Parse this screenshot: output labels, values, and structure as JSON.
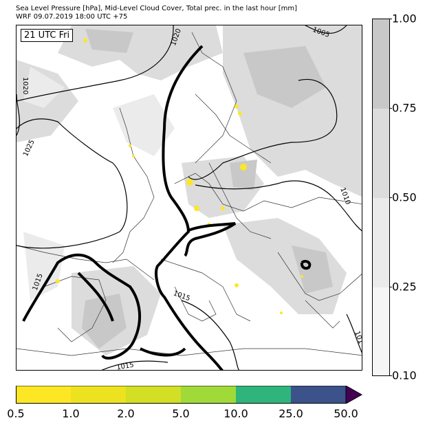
{
  "header": {
    "line1": "Sea Level Pressure [hPa], Mid-Level Cloud Cover, Total prec. in the last hour [mm]",
    "line2": "WRF 09.07.2019 18:00 UTC +75"
  },
  "map": {
    "time_label": "21 UTC Fri",
    "isobar_labels": [
      "1020",
      "1005",
      "1020",
      "1025",
      "1010",
      "1015",
      "1015",
      "1015",
      "101"
    ],
    "colors": {
      "sea": "#ffffff",
      "land": "#ffffff",
      "cloud_light": "#e6e6e6",
      "cloud_dark": "#c8c8c8",
      "precip": "#fde725"
    }
  },
  "cloud_colorbar": {
    "ticks": [
      "1.00",
      "0.75",
      "0.50",
      "0.25",
      "0.10"
    ],
    "colors": [
      "#c8c8c8",
      "#dcdcdc",
      "#ebebeb",
      "#f6f6f6"
    ]
  },
  "precip_colorbar": {
    "ticks": [
      "0.5",
      "1.0",
      "2.0",
      "5.0",
      "10.0",
      "25.0",
      "50.0"
    ],
    "colors": [
      "#fde725",
      "#ede21f",
      "#d2df24",
      "#a0da39",
      "#2fb47c",
      "#3b528b",
      "#440154"
    ]
  }
}
